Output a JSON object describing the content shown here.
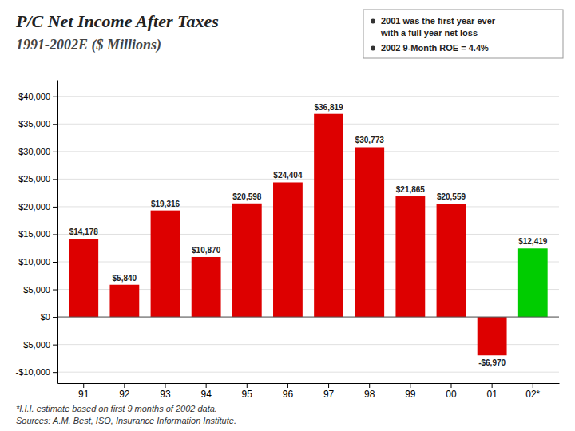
{
  "chart_data": {
    "type": "bar",
    "title": "P/C Net Income After Taxes",
    "subtitle": "1991-2002E ($ Millions)",
    "categories": [
      "91",
      "92",
      "93",
      "94",
      "95",
      "96",
      "97",
      "98",
      "99",
      "00",
      "01",
      "02*"
    ],
    "values": [
      14178,
      5840,
      19316,
      10870,
      20598,
      24404,
      36819,
      30773,
      21865,
      20559,
      -6970,
      12419
    ],
    "value_labels": [
      "$14,178",
      "$5,840",
      "$19,316",
      "$10,870",
      "$20,598",
      "$24,404",
      "$36,819",
      "$30,773",
      "$21,865",
      "$20,559",
      "-$6,970",
      "$12,419"
    ],
    "colors": [
      "#DD0000",
      "#DD0000",
      "#DD0000",
      "#DD0000",
      "#DD0000",
      "#DD0000",
      "#DD0000",
      "#DD0000",
      "#DD0000",
      "#DD0000",
      "#DD0000",
      "#00CC00"
    ],
    "data_labels": true,
    "ylim": [
      -12000,
      43000
    ],
    "yticks": [
      {
        "value": -10000,
        "label": "-$10,000"
      },
      {
        "value": -5000,
        "label": "-$5,000"
      },
      {
        "value": 0,
        "label": "$0"
      },
      {
        "value": 5000,
        "label": "$5,000"
      },
      {
        "value": 10000,
        "label": "$10,000"
      },
      {
        "value": 15000,
        "label": "$15,000"
      },
      {
        "value": 20000,
        "label": "$20,000"
      },
      {
        "value": 25000,
        "label": "$25,000"
      },
      {
        "value": 30000,
        "label": "$30,000"
      },
      {
        "value": 35000,
        "label": "$35,000"
      },
      {
        "value": 40000,
        "label": "$40,000"
      }
    ],
    "grid": true,
    "annotations": [
      [
        "2001 was the first year ever",
        "with a full year net loss"
      ],
      [
        "2002 9-Month ROE = 4.4%"
      ]
    ],
    "footnotes": [
      "*I.I.I. estimate based on first 9 months of 2002 data.",
      "Sources: A.M. Best, ISO, Insurance Information Institute."
    ]
  }
}
